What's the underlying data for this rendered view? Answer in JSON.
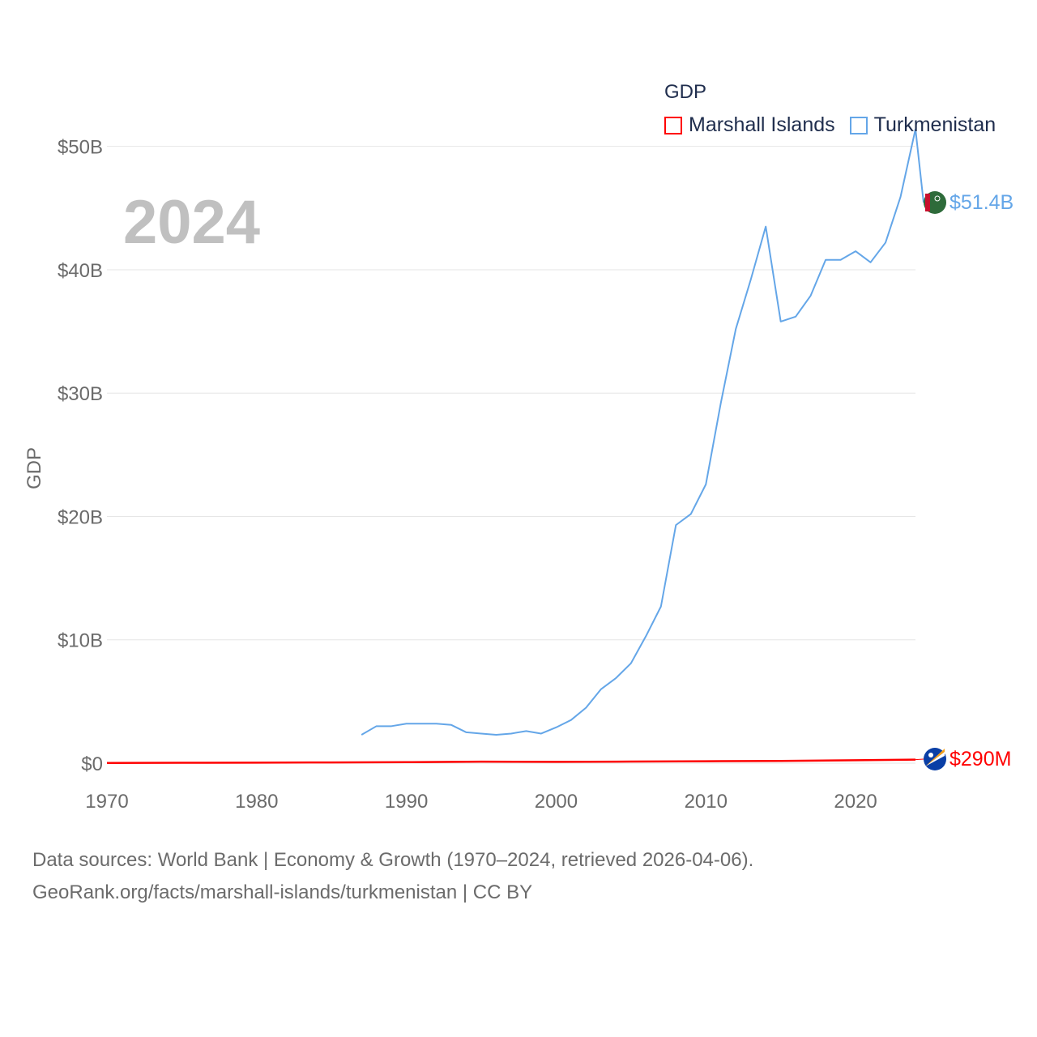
{
  "legend": {
    "title": "GDP",
    "items": [
      {
        "label": "Marshall Islands",
        "color": "#ff0000"
      },
      {
        "label": "Turkmenistan",
        "color": "#64a6e8"
      }
    ]
  },
  "footer": {
    "line1": "Data sources: World Bank | Economy & Growth (1970–2024, retrieved 2026-04-06).",
    "line2": "GeoRank.org/facts/marshall-islands/turkmenistan | CC BY"
  },
  "chart_data": {
    "type": "line",
    "title": "GDP",
    "year_label": "2024",
    "xlabel": "",
    "ylabel": "GDP",
    "xlim": [
      1970,
      2024
    ],
    "ylim": [
      0,
      53
    ],
    "x_ticks": [
      1970,
      1980,
      1990,
      2000,
      2010,
      2020
    ],
    "y_ticks": [
      {
        "value": 0,
        "label": "$0"
      },
      {
        "value": 10,
        "label": "$10B"
      },
      {
        "value": 20,
        "label": "$20B"
      },
      {
        "value": 30,
        "label": "$30B"
      },
      {
        "value": 40,
        "label": "$40B"
      },
      {
        "value": 50,
        "label": "$50B"
      }
    ],
    "units": "billions USD",
    "grid": true,
    "series": [
      {
        "name": "Marshall Islands",
        "color": "#ff0000",
        "end_label": "$290M",
        "flag_icon": "marshall-islands-flag-icon",
        "x": [
          1970,
          1975,
          1980,
          1985,
          1990,
          1995,
          2000,
          2005,
          2010,
          2015,
          2020,
          2024
        ],
        "y": [
          0.02,
          0.03,
          0.04,
          0.06,
          0.08,
          0.12,
          0.11,
          0.13,
          0.16,
          0.18,
          0.24,
          0.29
        ]
      },
      {
        "name": "Turkmenistan",
        "color": "#64a6e8",
        "end_label": "$51.4B",
        "flag_icon": "turkmenistan-flag-icon",
        "x": [
          1987,
          1988,
          1989,
          1990,
          1991,
          1992,
          1993,
          1994,
          1995,
          1996,
          1997,
          1998,
          1999,
          2000,
          2001,
          2002,
          2003,
          2004,
          2005,
          2006,
          2007,
          2008,
          2009,
          2010,
          2011,
          2012,
          2013,
          2014,
          2015,
          2016,
          2017,
          2018,
          2019,
          2020,
          2021,
          2022,
          2023,
          2024
        ],
        "y": [
          2.3,
          3.0,
          3.0,
          3.2,
          3.2,
          3.2,
          3.1,
          2.5,
          2.4,
          2.3,
          2.4,
          2.6,
          2.4,
          2.9,
          3.5,
          4.5,
          6.0,
          6.9,
          8.1,
          10.3,
          12.7,
          19.3,
          20.2,
          22.6,
          29.2,
          35.2,
          39.2,
          43.5,
          35.8,
          36.2,
          37.9,
          40.8,
          40.8,
          41.5,
          40.6,
          42.2,
          45.9,
          51.4
        ]
      }
    ]
  }
}
